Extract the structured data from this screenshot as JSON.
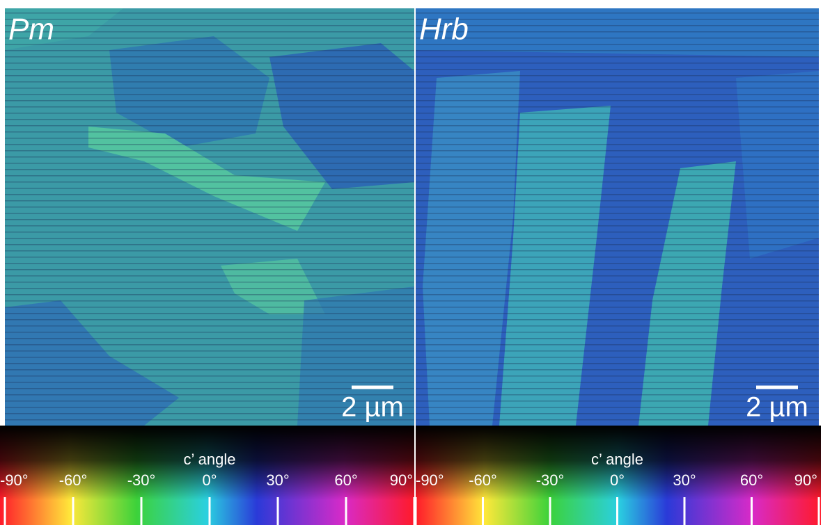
{
  "panels": [
    {
      "label": "Pm",
      "scale_bar": "2 µm",
      "colorbar": {
        "title": "c’ angle",
        "ticks": [
          {
            "value": -90,
            "label": "-90°"
          },
          {
            "value": -60,
            "label": "-60°"
          },
          {
            "value": -30,
            "label": "-30°"
          },
          {
            "value": 0,
            "label": "0°"
          },
          {
            "value": 30,
            "label": "30°"
          },
          {
            "value": 60,
            "label": "60°"
          },
          {
            "value": 90,
            "label": "90°"
          }
        ]
      }
    },
    {
      "label": "Hrb",
      "scale_bar": "2 µm",
      "colorbar": {
        "title": "c’ angle",
        "ticks": [
          {
            "value": -90,
            "label": "-90°"
          },
          {
            "value": -60,
            "label": "-60°"
          },
          {
            "value": -30,
            "label": "-30°"
          },
          {
            "value": 0,
            "label": "0°"
          },
          {
            "value": 30,
            "label": "30°"
          },
          {
            "value": 60,
            "label": "60°"
          },
          {
            "value": 90,
            "label": "90°"
          }
        ]
      }
    }
  ]
}
